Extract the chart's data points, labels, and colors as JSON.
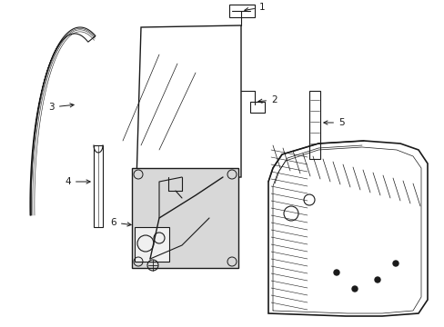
{
  "background_color": "#ffffff",
  "line_color": "#1a1a1a",
  "label_color": "#000000",
  "figsize": [
    4.89,
    3.6
  ],
  "dpi": 100,
  "label_fontsize": 7.5,
  "lw": 0.8
}
